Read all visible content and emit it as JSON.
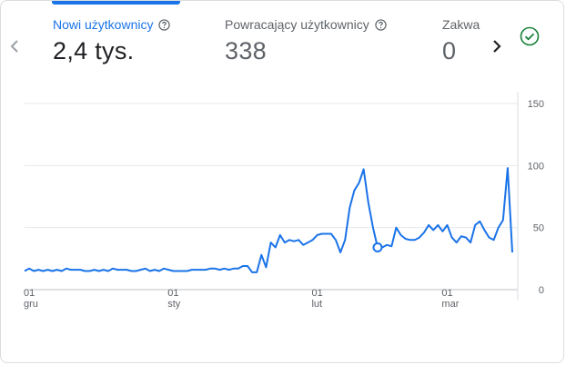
{
  "metrics": [
    {
      "label": "Nowi użytkownicy",
      "value": "2,4 tys.",
      "active": true
    },
    {
      "label": "Powracający użytkownicy",
      "value": "338",
      "active": false
    },
    {
      "label": "Zakwa",
      "value": "0",
      "active": false
    }
  ],
  "icons": {
    "prev": "chevron-left-icon",
    "next": "chevron-right-icon",
    "status": "check-circle-icon",
    "help": "help-circle-icon"
  },
  "colors": {
    "accent": "#1a73e8",
    "line": "#1a73e8",
    "status": "#188038",
    "grid": "#e8eaed"
  },
  "chart_data": {
    "type": "line",
    "ylim": [
      0,
      150
    ],
    "y_ticks": [
      "150",
      "100",
      "50",
      "0"
    ],
    "x_ticks": [
      {
        "day": "01",
        "month": "gru"
      },
      {
        "day": "01",
        "month": "sty"
      },
      {
        "day": "01",
        "month": "lut"
      },
      {
        "day": "01",
        "month": "mar"
      }
    ],
    "x_tick_indices": [
      0,
      31,
      62,
      90
    ],
    "grid": true,
    "highlight_index": 76,
    "series": [
      {
        "values": [
          15,
          17,
          15,
          16,
          15,
          16,
          15,
          16,
          15,
          17,
          16,
          16,
          16,
          15,
          15,
          16,
          15,
          16,
          15,
          17,
          16,
          16,
          16,
          15,
          15,
          16,
          17,
          15,
          16,
          15,
          17,
          16,
          15,
          15,
          15,
          15,
          16,
          16,
          16,
          16,
          17,
          17,
          16,
          17,
          16,
          17,
          17,
          19,
          19,
          14,
          14,
          28,
          18,
          38,
          34,
          44,
          38,
          40,
          39,
          40,
          36,
          38,
          40,
          44,
          45,
          45,
          45,
          40,
          30,
          40,
          66,
          80,
          86,
          97,
          70,
          50,
          34,
          34,
          36,
          35,
          50,
          44,
          41,
          40,
          40,
          42,
          46,
          52,
          48,
          52,
          47,
          52,
          42,
          38,
          43,
          42,
          38,
          52,
          55,
          48,
          42,
          40,
          50,
          56,
          98,
          30
        ]
      }
    ]
  }
}
